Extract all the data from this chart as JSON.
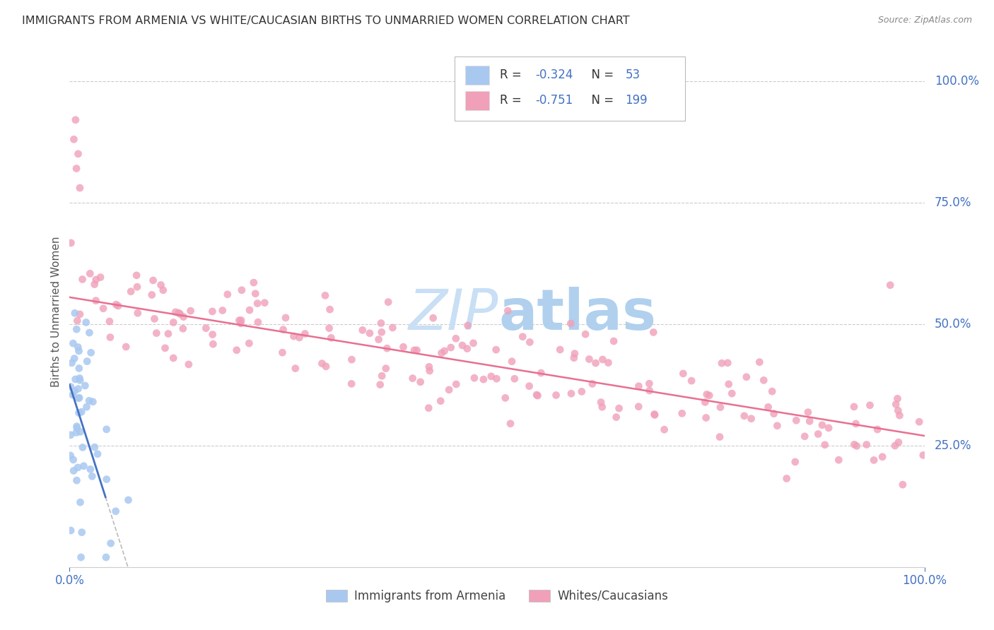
{
  "title": "IMMIGRANTS FROM ARMENIA VS WHITE/CAUCASIAN BIRTHS TO UNMARRIED WOMEN CORRELATION CHART",
  "source": "Source: ZipAtlas.com",
  "ylabel": "Births to Unmarried Women",
  "legend_label1": "Immigrants from Armenia",
  "legend_label2": "Whites/Caucasians",
  "R1": "-0.324",
  "N1": "53",
  "R2": "-0.751",
  "N2": "199",
  "color_blue": "#A8C8F0",
  "color_pink": "#F0A0B8",
  "color_blue_line": "#4472C4",
  "color_pink_line": "#E87090",
  "color_dashed": "#BBBBBB",
  "watermark_zip_color": "#C8DFF5",
  "watermark_atlas_color": "#B0D0EE",
  "grid_color": "#CCCCCC",
  "axis_label_color": "#4472C4",
  "title_color": "#333333",
  "source_color": "#888888",
  "legend_text_dark": "#333333",
  "legend_val_color": "#4472C4"
}
